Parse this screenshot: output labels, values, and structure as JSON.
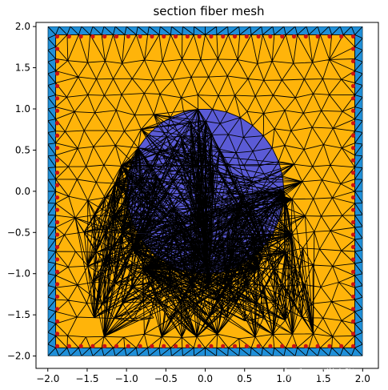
{
  "chart_data": {
    "type": "mesh",
    "title": "section fiber mesh",
    "xlabel": "",
    "ylabel": "",
    "xlim": [
      -2.15,
      2.2
    ],
    "ylim": [
      -2.15,
      2.05
    ],
    "xticks": [
      -2.0,
      -1.5,
      -1.0,
      -0.5,
      0.0,
      0.5,
      1.0,
      1.5,
      2.0
    ],
    "xtick_labels": [
      "−2.0",
      "−1.5",
      "−1.0",
      "−0.5",
      "0.0",
      "0.5",
      "1.0",
      "1.5",
      "2.0"
    ],
    "yticks": [
      -2.0,
      -1.5,
      -1.0,
      -0.5,
      0.0,
      0.5,
      1.0,
      1.5,
      2.0
    ],
    "ytick_labels": [
      "−2.0",
      "−1.5",
      "−1.0",
      "−0.5",
      "0.0",
      "0.5",
      "1.0",
      "1.5",
      "2.0"
    ],
    "regions": [
      {
        "shape": "square",
        "xmin": -2.0,
        "xmax": 2.0,
        "ymin": -2.0,
        "ymax": 2.0,
        "color": "#1f8fd8"
      },
      {
        "shape": "square",
        "xmin": -1.9,
        "xmax": 1.9,
        "ymin": -1.9,
        "ymax": 1.9,
        "color": "#ffb40a"
      },
      {
        "shape": "circle",
        "cx": 0.0,
        "cy": 0.0,
        "r": 1.0,
        "color": "#5b5bd6"
      }
    ],
    "mesh_edge_color": "#000000",
    "rebar": {
      "color": "#c81414",
      "radius": 0.02,
      "layout": "square-perimeter",
      "bounds": [
        -1.88,
        1.88
      ],
      "per_side": 26
    },
    "grid": false
  },
  "watermark": "知乎 @同学小张"
}
